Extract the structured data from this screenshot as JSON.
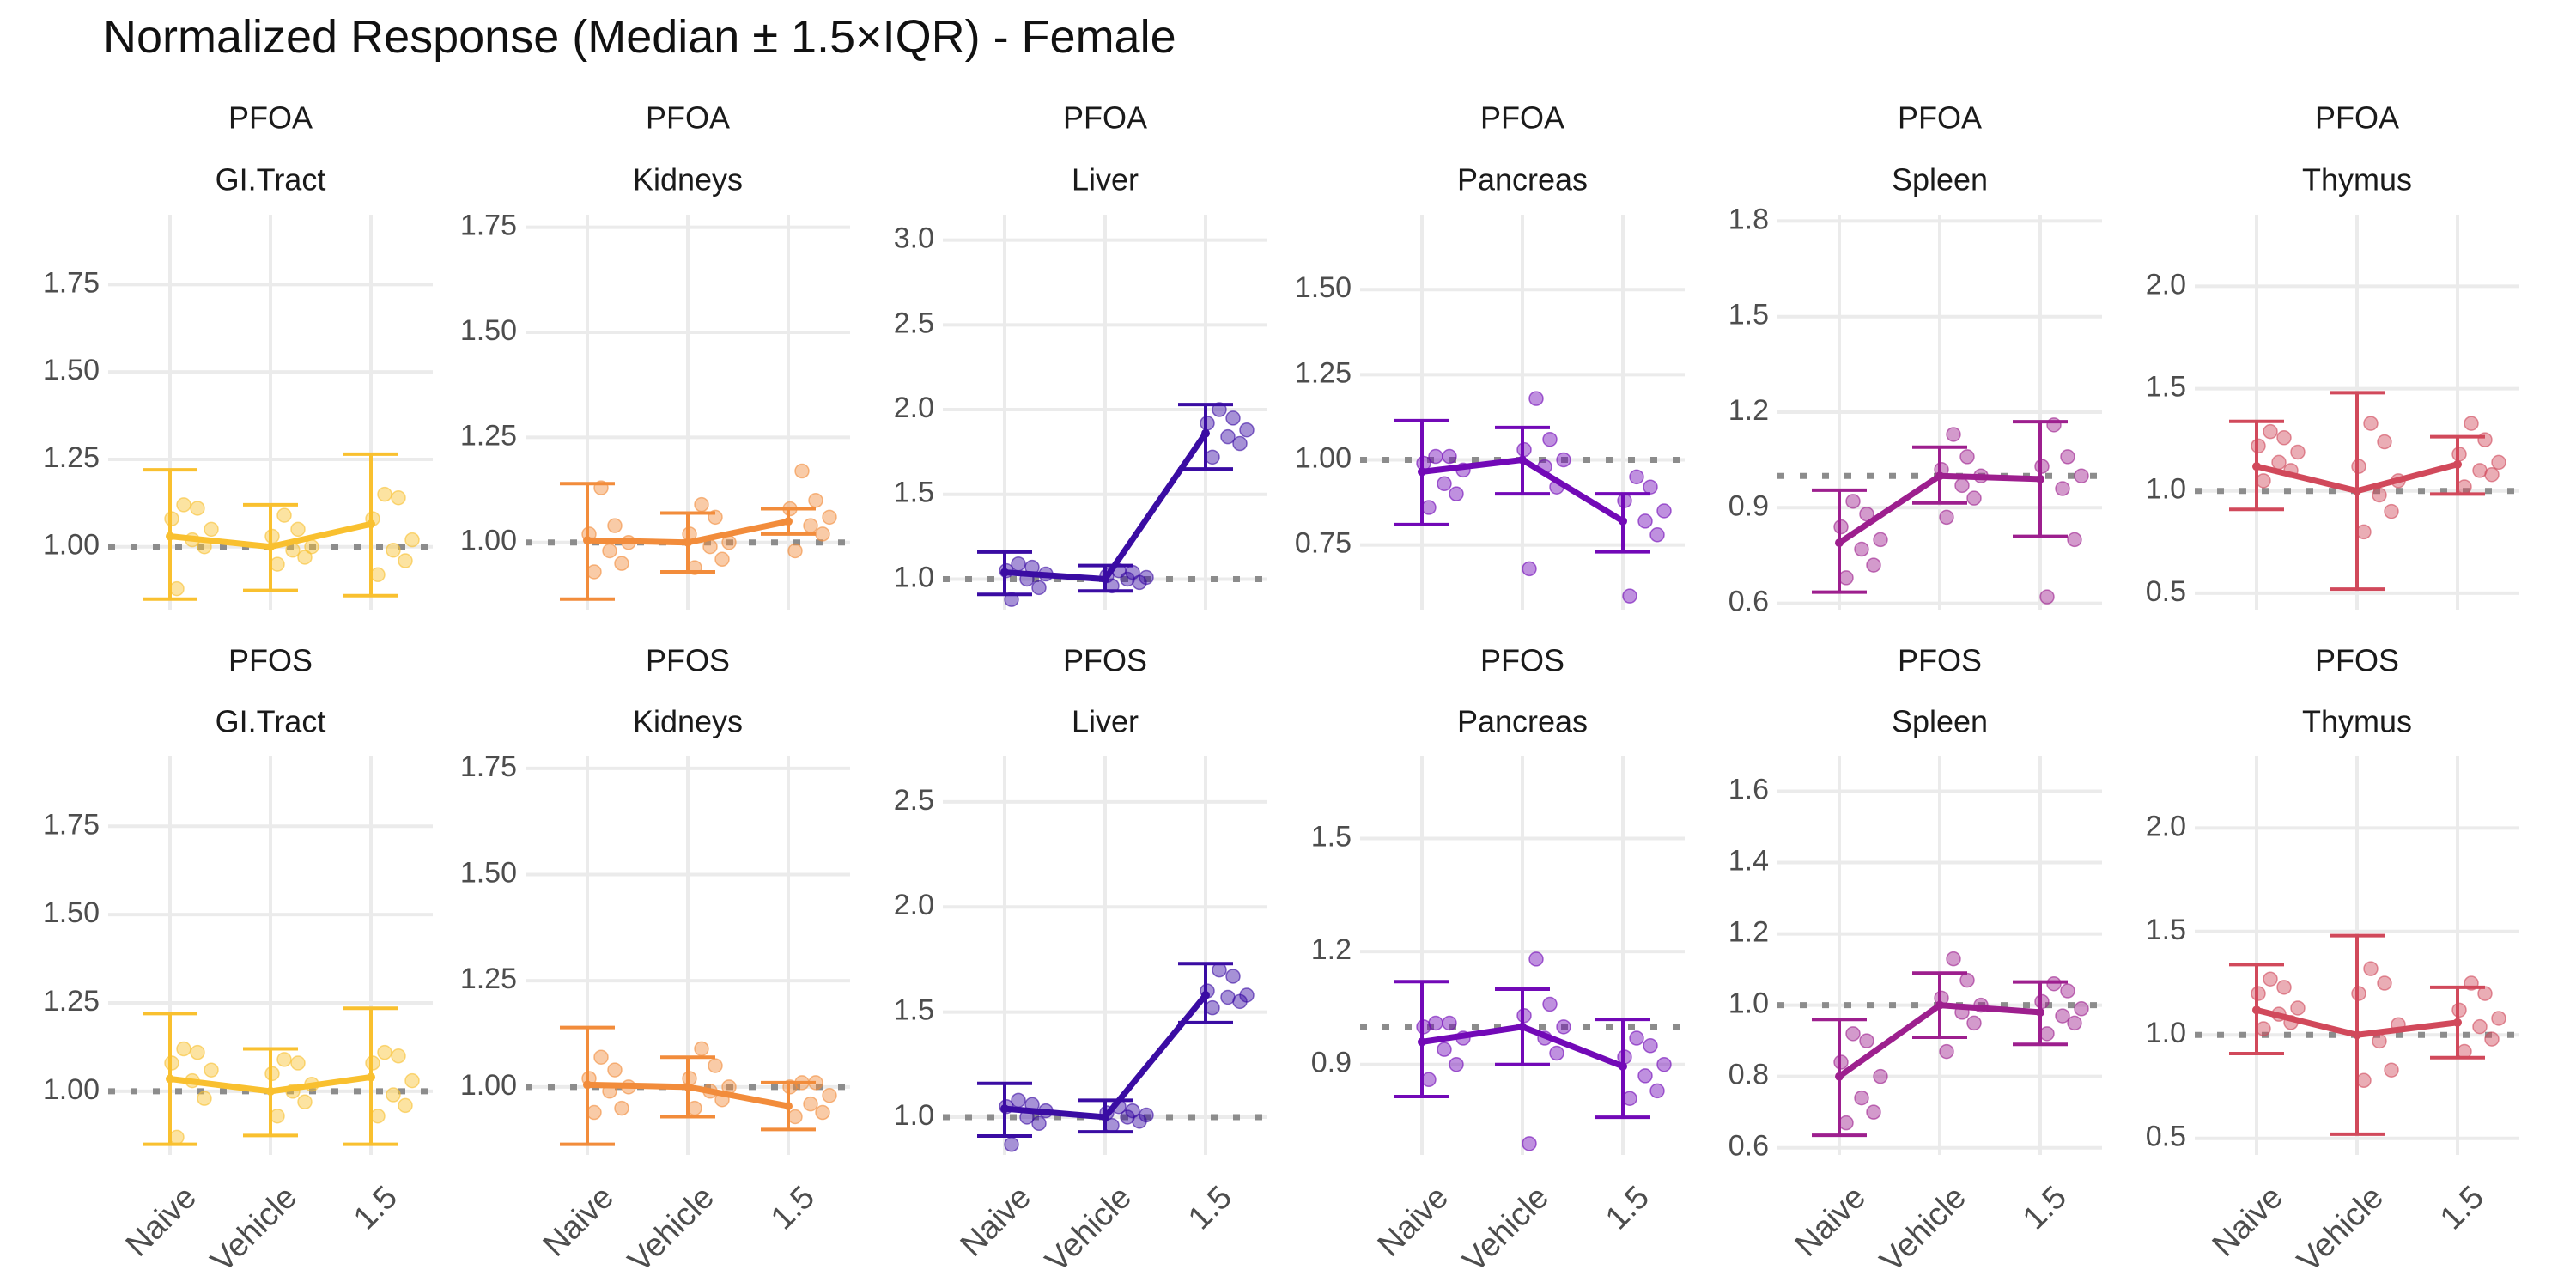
{
  "title": "Normalized Response (Median ± 1.5×IQR) - Female",
  "chart_data": {
    "type": "line",
    "title": "Normalized Response (Median ± 1.5×IQR) - Female",
    "categories": [
      "Naive",
      "Vehicle",
      "1.5"
    ],
    "reference_line": 1.0,
    "grid": true,
    "panels": [
      {
        "compound": "PFOA",
        "organ": "GI.Tract",
        "color": "#F9C02F",
        "ylim": [
          0.82,
          1.95
        ],
        "yticks": [
          1.0,
          1.25,
          1.5,
          1.75
        ],
        "median": [
          1.03,
          1.0,
          1.065
        ],
        "lower": [
          0.85,
          0.875,
          0.86
        ],
        "upper": [
          1.22,
          1.12,
          1.265
        ],
        "points": [
          [
            0.88,
            1.0,
            1.02,
            1.05,
            1.08,
            1.11,
            1.12
          ],
          [
            0.95,
            0.97,
            0.99,
            1.0,
            1.03,
            1.05,
            1.09
          ],
          [
            0.92,
            0.96,
            0.99,
            1.02,
            1.08,
            1.14,
            1.15
          ]
        ]
      },
      {
        "compound": "PFOA",
        "organ": "Kidneys",
        "color": "#F28C3B",
        "ylim": [
          0.84,
          1.78
        ],
        "yticks": [
          1.0,
          1.25,
          1.5,
          1.75
        ],
        "median": [
          1.005,
          1.0,
          1.05
        ],
        "lower": [
          0.865,
          0.93,
          1.02
        ],
        "upper": [
          1.14,
          1.07,
          1.08
        ],
        "points": [
          [
            0.93,
            0.95,
            0.98,
            1.0,
            1.02,
            1.04,
            1.13
          ],
          [
            0.94,
            0.96,
            0.99,
            1.0,
            1.02,
            1.06,
            1.09
          ],
          [
            0.98,
            1.02,
            1.04,
            1.06,
            1.08,
            1.1,
            1.17
          ]
        ]
      },
      {
        "compound": "PFOA",
        "organ": "Liver",
        "color": "#3A0CA3",
        "ylim": [
          0.82,
          3.15
        ],
        "yticks": [
          1.0,
          1.5,
          2.0,
          2.5,
          3.0
        ],
        "median": [
          1.04,
          1.0,
          1.86
        ],
        "lower": [
          0.91,
          0.93,
          1.65
        ],
        "upper": [
          1.16,
          1.08,
          2.03
        ],
        "points": [
          [
            0.88,
            0.95,
            1.0,
            1.03,
            1.05,
            1.07,
            1.09
          ],
          [
            0.96,
            0.98,
            1.0,
            1.01,
            1.02,
            1.04,
            1.05
          ],
          [
            1.72,
            1.8,
            1.84,
            1.88,
            1.92,
            1.95,
            2.0
          ]
        ]
      },
      {
        "compound": "PFOA",
        "organ": "Pancreas",
        "color": "#7209B7",
        "ylim": [
          0.56,
          1.72
        ],
        "yticks": [
          0.75,
          1.0,
          1.25,
          1.5
        ],
        "median": [
          0.965,
          1.0,
          0.82
        ],
        "lower": [
          0.81,
          0.9,
          0.73
        ],
        "upper": [
          1.115,
          1.095,
          0.9
        ],
        "points": [
          [
            0.86,
            0.9,
            0.93,
            0.97,
            0.99,
            1.01,
            1.01
          ],
          [
            0.68,
            0.92,
            0.98,
            1.0,
            1.03,
            1.06,
            1.18
          ],
          [
            0.6,
            0.78,
            0.82,
            0.85,
            0.88,
            0.92,
            0.95
          ]
        ]
      },
      {
        "compound": "PFOA",
        "organ": "Spleen",
        "color": "#9D1F8E",
        "ylim": [
          0.58,
          1.82
        ],
        "yticks": [
          0.6,
          0.9,
          1.2,
          1.5,
          1.8
        ],
        "median": [
          0.79,
          1.0,
          0.99
        ],
        "lower": [
          0.635,
          0.915,
          0.81
        ],
        "upper": [
          0.955,
          1.09,
          1.17
        ],
        "points": [
          [
            0.68,
            0.72,
            0.77,
            0.8,
            0.84,
            0.88,
            0.92
          ],
          [
            0.87,
            0.93,
            0.97,
            1.0,
            1.02,
            1.06,
            1.13
          ],
          [
            0.62,
            0.8,
            0.96,
            1.0,
            1.03,
            1.06,
            1.16
          ]
        ]
      },
      {
        "compound": "PFOA",
        "organ": "Thymus",
        "color": "#D1495B",
        "ylim": [
          0.42,
          2.35
        ],
        "yticks": [
          0.5,
          1.0,
          1.5,
          2.0
        ],
        "median": [
          1.12,
          1.0,
          1.13
        ],
        "lower": [
          0.91,
          0.52,
          0.985
        ],
        "upper": [
          1.34,
          1.48,
          1.265
        ],
        "points": [
          [
            1.05,
            1.1,
            1.14,
            1.19,
            1.22,
            1.26,
            1.29
          ],
          [
            0.8,
            0.9,
            0.98,
            1.05,
            1.12,
            1.24,
            1.33
          ],
          [
            1.02,
            1.08,
            1.1,
            1.14,
            1.18,
            1.25,
            1.33
          ]
        ]
      },
      {
        "compound": "PFOS",
        "organ": "GI.Tract",
        "color": "#F9C02F",
        "ylim": [
          0.82,
          1.95
        ],
        "yticks": [
          1.0,
          1.25,
          1.5,
          1.75
        ],
        "median": [
          1.035,
          1.0,
          1.04
        ],
        "lower": [
          0.85,
          0.875,
          0.85
        ],
        "upper": [
          1.22,
          1.12,
          1.235
        ],
        "points": [
          [
            0.87,
            0.98,
            1.03,
            1.06,
            1.08,
            1.11,
            1.12
          ],
          [
            0.93,
            0.97,
            1.0,
            1.02,
            1.05,
            1.08,
            1.09
          ],
          [
            0.93,
            0.96,
            0.99,
            1.03,
            1.08,
            1.1,
            1.11
          ]
        ]
      },
      {
        "compound": "PFOS",
        "organ": "Kidneys",
        "color": "#F28C3B",
        "ylim": [
          0.84,
          1.78
        ],
        "yticks": [
          1.0,
          1.25,
          1.5,
          1.75
        ],
        "median": [
          1.005,
          1.0,
          0.955
        ],
        "lower": [
          0.865,
          0.93,
          0.9
        ],
        "upper": [
          1.14,
          1.07,
          1.01
        ],
        "points": [
          [
            0.94,
            0.95,
            0.99,
            1.0,
            1.02,
            1.04,
            1.07
          ],
          [
            0.95,
            0.97,
            0.99,
            1.0,
            1.02,
            1.05,
            1.09
          ],
          [
            0.93,
            0.94,
            0.96,
            0.98,
            1.0,
            1.01,
            1.01
          ]
        ]
      },
      {
        "compound": "PFOS",
        "organ": "Liver",
        "color": "#3A0CA3",
        "ylim": [
          0.82,
          2.72
        ],
        "yticks": [
          1.0,
          1.5,
          2.0,
          2.5
        ],
        "median": [
          1.04,
          1.0,
          1.58
        ],
        "lower": [
          0.91,
          0.93,
          1.45
        ],
        "upper": [
          1.16,
          1.08,
          1.73
        ],
        "points": [
          [
            0.87,
            0.97,
            1.0,
            1.03,
            1.05,
            1.06,
            1.08
          ],
          [
            0.96,
            0.98,
            1.0,
            1.01,
            1.02,
            1.03,
            1.05
          ],
          [
            1.52,
            1.55,
            1.57,
            1.58,
            1.6,
            1.67,
            1.7
          ]
        ]
      },
      {
        "compound": "PFOS",
        "organ": "Pancreas",
        "color": "#7209B7",
        "ylim": [
          0.66,
          1.72
        ],
        "yticks": [
          0.9,
          1.2,
          1.5
        ],
        "median": [
          0.96,
          1.0,
          0.895
        ],
        "lower": [
          0.815,
          0.9,
          0.76
        ],
        "upper": [
          1.12,
          1.1,
          1.02
        ],
        "points": [
          [
            0.86,
            0.9,
            0.94,
            0.97,
            1.0,
            1.01,
            1.01
          ],
          [
            0.69,
            0.93,
            0.97,
            1.0,
            1.03,
            1.06,
            1.18
          ],
          [
            0.81,
            0.83,
            0.87,
            0.9,
            0.92,
            0.95,
            0.97
          ]
        ]
      },
      {
        "compound": "PFOS",
        "organ": "Spleen",
        "color": "#9D1F8E",
        "ylim": [
          0.58,
          1.7
        ],
        "yticks": [
          0.6,
          0.8,
          1.0,
          1.2,
          1.4,
          1.6
        ],
        "median": [
          0.8,
          1.0,
          0.98
        ],
        "lower": [
          0.635,
          0.91,
          0.89
        ],
        "upper": [
          0.96,
          1.09,
          1.065
        ],
        "points": [
          [
            0.67,
            0.7,
            0.74,
            0.8,
            0.84,
            0.9,
            0.92
          ],
          [
            0.87,
            0.95,
            0.98,
            1.0,
            1.02,
            1.07,
            1.13
          ],
          [
            0.92,
            0.95,
            0.97,
            0.99,
            1.01,
            1.04,
            1.06
          ]
        ]
      },
      {
        "compound": "PFOS",
        "organ": "Thymus",
        "color": "#D1495B",
        "ylim": [
          0.42,
          2.35
        ],
        "yticks": [
          0.5,
          1.0,
          1.5,
          2.0
        ],
        "median": [
          1.12,
          1.0,
          1.06
        ],
        "lower": [
          0.91,
          0.52,
          0.89
        ],
        "upper": [
          1.34,
          1.48,
          1.23
        ],
        "points": [
          [
            1.03,
            1.06,
            1.1,
            1.13,
            1.2,
            1.23,
            1.27
          ],
          [
            0.78,
            0.83,
            0.97,
            1.05,
            1.2,
            1.25,
            1.32
          ],
          [
            0.92,
            0.98,
            1.04,
            1.08,
            1.12,
            1.2,
            1.25
          ]
        ]
      }
    ]
  }
}
